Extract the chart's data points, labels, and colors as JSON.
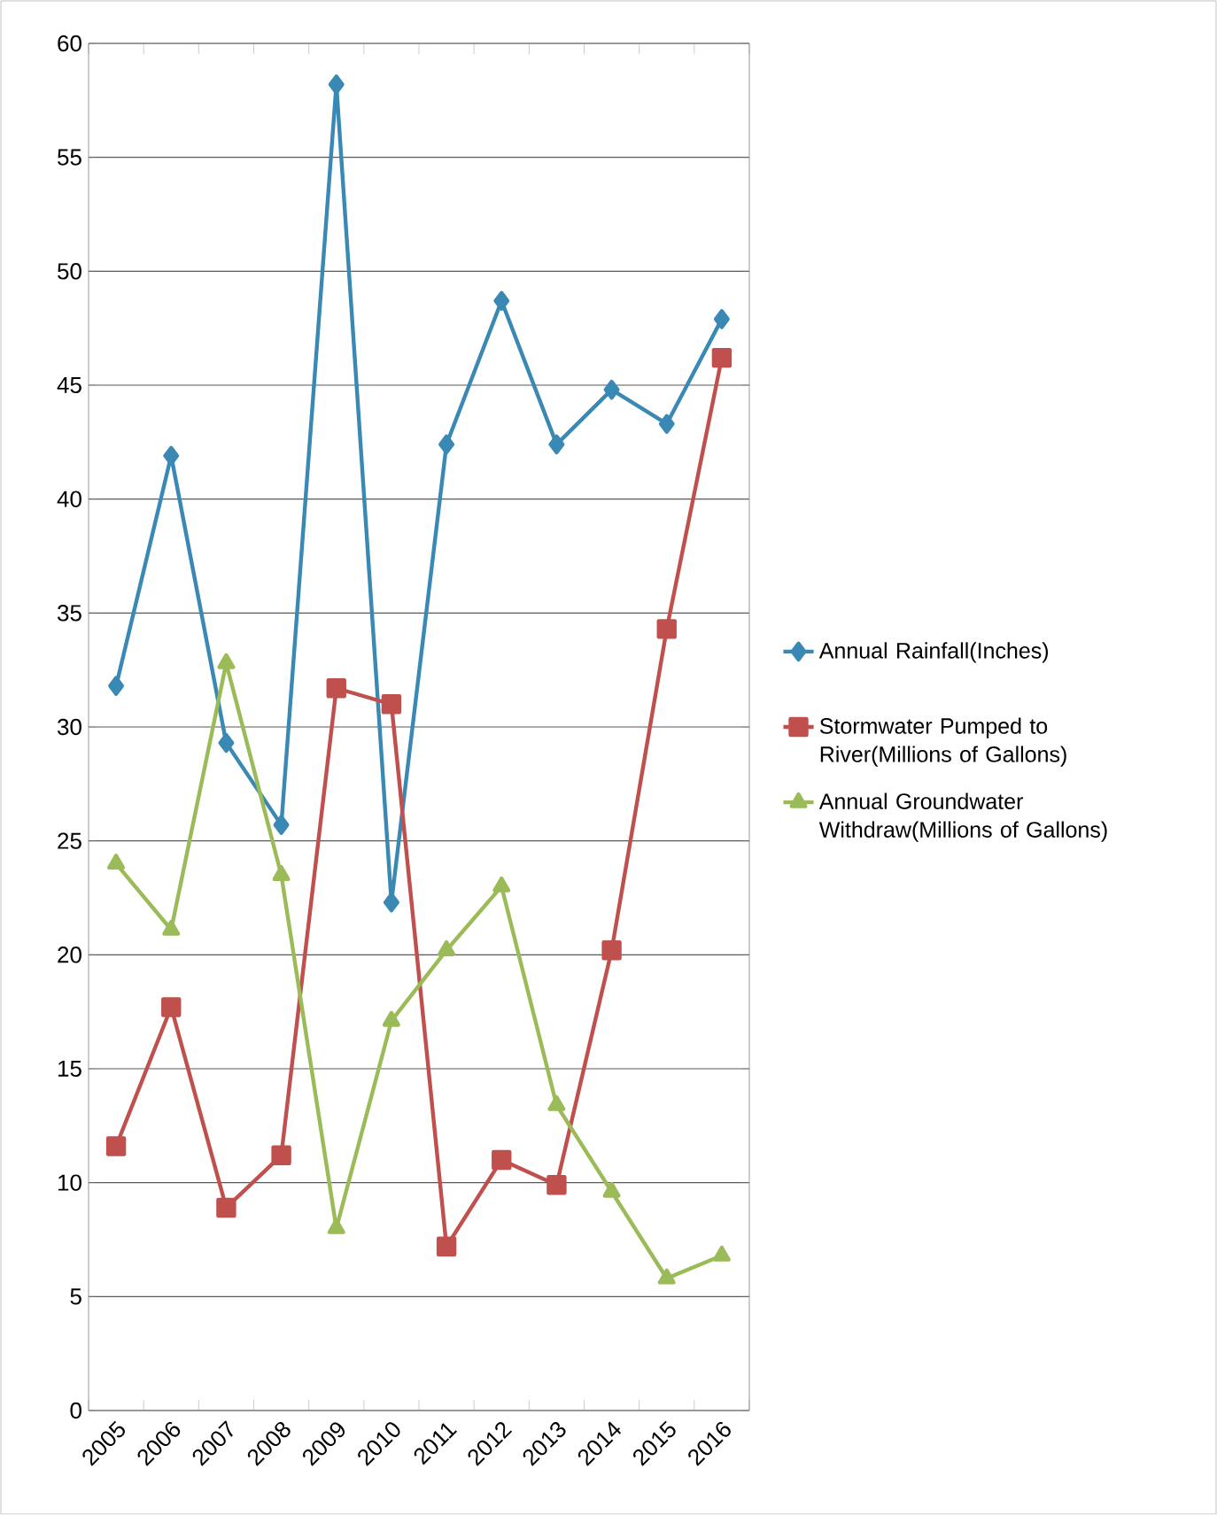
{
  "chart_data": {
    "type": "line",
    "categories": [
      "2005",
      "2006",
      "2007",
      "2008",
      "2009",
      "2010",
      "2011",
      "2012",
      "2013",
      "2014",
      "2015",
      "2016"
    ],
    "series": [
      {
        "name": "Annual Rainfall(Inches)",
        "color": "#3a89b5",
        "marker": "diamond",
        "values": [
          31.8,
          41.9,
          29.3,
          25.7,
          58.2,
          22.3,
          42.4,
          48.7,
          42.4,
          44.8,
          43.3,
          47.9
        ]
      },
      {
        "name": "Stormwater Pumped to River(Millions of Gallons)",
        "color": "#c0504d",
        "marker": "square",
        "values": [
          11.6,
          17.7,
          8.9,
          11.2,
          31.7,
          31.0,
          7.2,
          11.0,
          9.9,
          20.2,
          34.3,
          46.2
        ]
      },
      {
        "name": "Annual Groundwater Withdraw(Millions of Gallons)",
        "color": "#9bbb59",
        "marker": "triangle",
        "values": [
          24.0,
          21.1,
          32.8,
          23.5,
          8.0,
          17.1,
          20.2,
          23.0,
          13.4,
          9.6,
          5.8,
          6.8
        ]
      }
    ],
    "ylim": [
      0,
      60
    ],
    "yticks": [
      0,
      5,
      10,
      15,
      20,
      25,
      30,
      35,
      40,
      45,
      50,
      55,
      60
    ],
    "grid": "y",
    "legend": "right",
    "line_style": "solid"
  }
}
